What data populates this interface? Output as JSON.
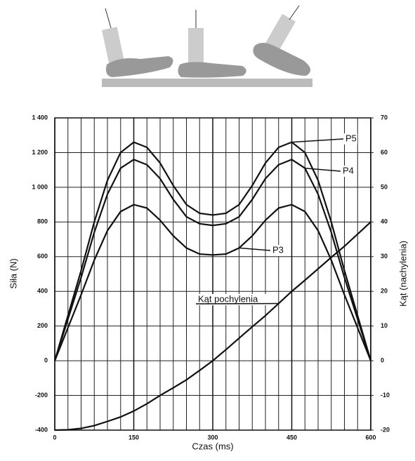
{
  "chart_data": {
    "type": "line",
    "x": [
      0,
      25,
      50,
      75,
      100,
      125,
      150,
      175,
      200,
      225,
      250,
      275,
      300,
      325,
      350,
      375,
      400,
      425,
      450,
      475,
      500,
      525,
      550,
      575,
      600
    ],
    "series": [
      {
        "name": "P5",
        "color": "#111111",
        "values": [
          0,
          260,
          520,
          800,
          1040,
          1200,
          1260,
          1230,
          1140,
          1010,
          900,
          850,
          840,
          850,
          900,
          1010,
          1140,
          1230,
          1260,
          1200,
          1040,
          800,
          520,
          260,
          0
        ]
      },
      {
        "name": "P4",
        "color": "#111111",
        "values": [
          0,
          240,
          480,
          740,
          960,
          1110,
          1160,
          1130,
          1050,
          930,
          830,
          790,
          780,
          790,
          830,
          930,
          1050,
          1130,
          1160,
          1110,
          960,
          740,
          480,
          240,
          0
        ]
      },
      {
        "name": "P3",
        "color": "#111111",
        "values": [
          0,
          190,
          380,
          580,
          750,
          860,
          900,
          880,
          810,
          720,
          650,
          615,
          610,
          615,
          650,
          720,
          810,
          880,
          900,
          860,
          750,
          580,
          380,
          190,
          0
        ]
      },
      {
        "name": "Kąt pochylenia",
        "color": "#111111",
        "axis": "y2",
        "values": [
          -20,
          -19.9,
          -19.5,
          -18.7,
          -17.5,
          -16.2,
          -14.5,
          -12.4,
          -10,
          -7.8,
          -5.5,
          -2.8,
          0,
          3.2,
          6.5,
          9.8,
          13,
          16.5,
          20,
          23.2,
          26.5,
          29.8,
          33,
          36.5,
          40
        ]
      }
    ],
    "xlabel": "Czas (ms)",
    "ylabel": "Siła (N)",
    "y2label": "Kąt (nachylenia)",
    "xlim": [
      0,
      600
    ],
    "xticks": [
      0,
      150,
      300,
      450,
      600
    ],
    "ylim": [
      -400,
      1400
    ],
    "yticks": [
      {
        "value": -400,
        "label": "-400"
      },
      {
        "value": -200,
        "label": "-200"
      },
      0,
      200,
      400,
      600,
      800,
      {
        "value": 1000,
        "label": "1 000"
      },
      {
        "value": 1200,
        "label": "1 200"
      },
      {
        "value": 1400,
        "label": "1 400"
      }
    ],
    "y2lim": [
      -20,
      70
    ],
    "y2ticks": [
      -20,
      -10,
      0,
      10,
      20,
      30,
      40,
      50,
      60,
      70
    ],
    "grid": true
  }
}
